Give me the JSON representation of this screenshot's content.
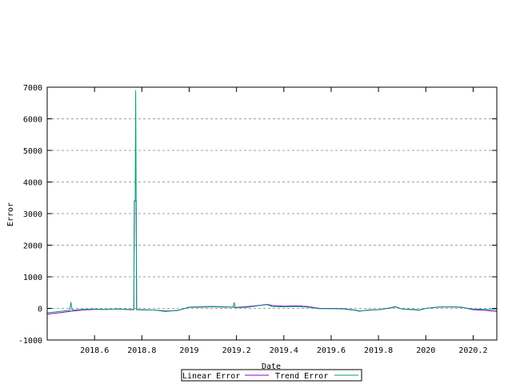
{
  "chart_data": {
    "type": "line",
    "title": "",
    "xlabel": "Date",
    "ylabel": "Error",
    "xlim": [
      2018.4,
      2020.3
    ],
    "ylim": [
      -1000,
      7000
    ],
    "grid": {
      "y": true,
      "x": false
    },
    "legend_placement": "bottom-center",
    "x_ticks": [
      "2018.6",
      "2018.8",
      "2019",
      "2019.2",
      "2019.4",
      "2019.6",
      "2019.8",
      "2020",
      "2020.2"
    ],
    "x_tick_values": [
      2018.6,
      2018.8,
      2019.0,
      2019.2,
      2019.4,
      2019.6,
      2019.8,
      2020.0,
      2020.2
    ],
    "y_ticks": [
      "-1000",
      "0",
      "1000",
      "2000",
      "3000",
      "4000",
      "5000",
      "6000",
      "7000"
    ],
    "y_tick_values": [
      -1000,
      0,
      1000,
      2000,
      3000,
      4000,
      5000,
      6000,
      7000
    ],
    "series": [
      {
        "name": "Linear Error",
        "color": "#9400d3",
        "x": [
          2018.4,
          2018.45,
          2018.5,
          2018.55,
          2018.6,
          2018.65,
          2018.7,
          2018.75,
          2018.766,
          2018.768,
          2018.776,
          2018.778,
          2018.8,
          2018.85,
          2018.9,
          2018.95,
          2019.0,
          2019.05,
          2019.1,
          2019.15,
          2019.2,
          2019.25,
          2019.3,
          2019.33,
          2019.35,
          2019.4,
          2019.45,
          2019.5,
          2019.55,
          2019.6,
          2019.65,
          2019.7,
          2019.72,
          2019.75,
          2019.8,
          2019.85,
          2019.87,
          2019.9,
          2019.95,
          2019.97,
          2020.0,
          2020.05,
          2020.1,
          2020.15,
          2020.2,
          2020.25,
          2020.3
        ],
        "y": [
          -180,
          -140,
          -90,
          -50,
          -30,
          -30,
          -20,
          -40,
          -40,
          3400,
          3400,
          -40,
          -40,
          -50,
          -80,
          -70,
          40,
          50,
          60,
          50,
          30,
          60,
          100,
          130,
          90,
          70,
          80,
          60,
          0,
          0,
          -10,
          -50,
          -80,
          -60,
          -40,
          10,
          50,
          -20,
          -40,
          -60,
          0,
          40,
          50,
          40,
          -40,
          -60,
          -100
        ]
      },
      {
        "name": "Trend Error",
        "color": "#009e73",
        "x": [
          2018.4,
          2018.45,
          2018.495,
          2018.5,
          2018.505,
          2018.55,
          2018.6,
          2018.65,
          2018.7,
          2018.75,
          2018.766,
          2018.768,
          2018.772,
          2018.774,
          2018.776,
          2018.778,
          2018.8,
          2018.85,
          2018.9,
          2018.95,
          2019.0,
          2019.05,
          2019.1,
          2019.15,
          2019.185,
          2019.19,
          2019.195,
          2019.25,
          2019.3,
          2019.33,
          2019.35,
          2019.4,
          2019.45,
          2019.5,
          2019.55,
          2019.6,
          2019.65,
          2019.7,
          2019.72,
          2019.75,
          2019.8,
          2019.85,
          2019.87,
          2019.9,
          2019.95,
          2019.97,
          2020.0,
          2020.05,
          2020.1,
          2020.15,
          2020.2,
          2020.25,
          2020.3
        ],
        "y": [
          -140,
          -100,
          -60,
          200,
          -50,
          -30,
          -20,
          -30,
          -20,
          -30,
          -30,
          3400,
          3400,
          6900,
          3400,
          -40,
          -50,
          -50,
          -100,
          -60,
          30,
          40,
          50,
          40,
          40,
          190,
          20,
          40,
          90,
          120,
          60,
          50,
          60,
          40,
          -10,
          -10,
          -20,
          -60,
          -90,
          -50,
          -40,
          20,
          60,
          -20,
          -30,
          -50,
          0,
          40,
          50,
          30,
          -20,
          -30,
          -40
        ]
      }
    ]
  }
}
